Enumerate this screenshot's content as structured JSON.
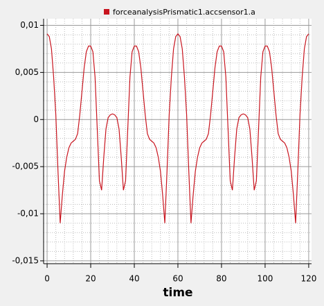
{
  "chart_data": {
    "type": "line",
    "x": [
      0,
      1,
      2,
      3,
      4,
      5,
      6,
      7,
      8,
      9,
      10,
      11,
      12,
      13,
      14,
      15,
      16,
      17,
      18,
      19,
      20,
      21,
      22,
      23,
      24,
      25,
      26,
      27,
      28,
      29,
      30,
      31,
      32,
      33,
      34,
      35,
      36,
      37,
      38,
      39,
      40,
      41,
      42,
      43,
      44,
      45,
      46,
      47,
      48,
      49,
      50,
      51,
      52,
      53,
      54,
      55,
      56,
      57,
      58,
      59,
      60,
      61,
      62,
      63,
      64,
      65,
      66,
      67,
      68,
      69,
      70,
      71,
      72,
      73,
      74,
      75,
      76,
      77,
      78,
      79,
      80,
      81,
      82,
      83,
      84,
      85,
      86,
      87,
      88,
      89,
      90,
      91,
      92,
      93,
      94,
      95,
      96,
      97,
      98,
      99,
      100,
      101,
      102,
      103,
      104,
      105,
      106,
      107,
      108,
      109,
      110,
      111,
      112,
      113,
      114,
      115,
      116,
      117,
      118,
      119,
      120
    ],
    "series": [
      {
        "name": "forceanalysisPrismatic1.accsensor1.a",
        "color": "#c8141e",
        "values": [
          0.0091,
          0.0088,
          0.0075,
          0.0045,
          0.0005,
          -0.0055,
          -0.011,
          -0.008,
          -0.0055,
          -0.004,
          -0.003,
          -0.0025,
          -0.0023,
          -0.0021,
          -0.0015,
          0.0005,
          0.003,
          0.0055,
          0.0072,
          0.0078,
          0.0078,
          0.0072,
          0.0045,
          -0.001,
          -0.0065,
          -0.0075,
          -0.004,
          -0.001,
          0.0002,
          0.0005,
          0.0006,
          0.0005,
          0.0002,
          -0.001,
          -0.004,
          -0.0075,
          -0.0065,
          -0.001,
          0.0045,
          0.0072,
          0.0078,
          0.0078,
          0.0072,
          0.0055,
          0.003,
          0.0005,
          -0.0015,
          -0.0021,
          -0.0023,
          -0.0025,
          -0.003,
          -0.004,
          -0.0055,
          -0.008,
          -0.011,
          -0.0055,
          0.0005,
          0.0045,
          0.0075,
          0.0088,
          0.0091,
          0.0088,
          0.0075,
          0.0045,
          0.0005,
          -0.0055,
          -0.011,
          -0.008,
          -0.0055,
          -0.004,
          -0.003,
          -0.0025,
          -0.0023,
          -0.0021,
          -0.0015,
          0.0005,
          0.003,
          0.0055,
          0.0072,
          0.0078,
          0.0078,
          0.0072,
          0.0045,
          -0.001,
          -0.0065,
          -0.0075,
          -0.004,
          -0.001,
          0.0002,
          0.0005,
          0.0006,
          0.0005,
          0.0002,
          -0.001,
          -0.004,
          -0.0075,
          -0.0065,
          -0.001,
          0.0045,
          0.0072,
          0.0078,
          0.0078,
          0.0072,
          0.0055,
          0.003,
          0.0005,
          -0.0015,
          -0.0021,
          -0.0023,
          -0.0025,
          -0.003,
          -0.004,
          -0.0055,
          -0.008,
          -0.011,
          -0.0055,
          0.0005,
          0.0045,
          0.0075,
          0.0088,
          0.0091
        ]
      }
    ],
    "x_label": "time",
    "xlim": [
      -1.6,
      121.3
    ],
    "xticks": [
      0,
      20,
      40,
      60,
      80,
      100,
      120
    ],
    "ylim": [
      -0.0153,
      0.0107
    ],
    "yticks": [
      {
        "value": 0.01,
        "label": "0,01"
      },
      {
        "value": 0.005,
        "label": "0,005"
      },
      0,
      {
        "value": -0.005,
        "label": "-0,005"
      },
      {
        "value": -0.01,
        "label": "-0,01"
      },
      {
        "value": -0.015,
        "label": "-0,015"
      }
    ],
    "grid": true
  }
}
